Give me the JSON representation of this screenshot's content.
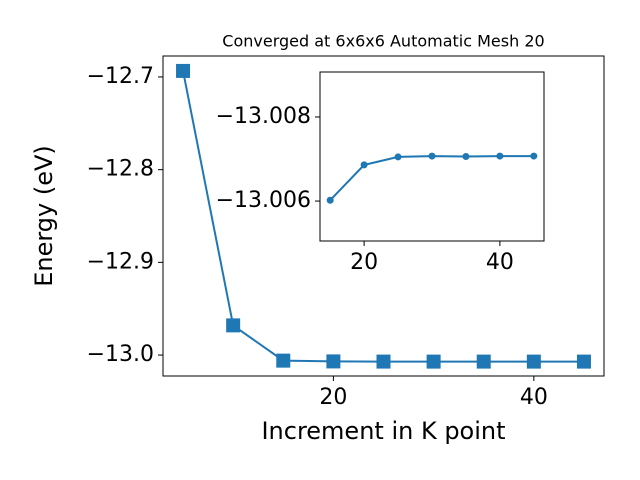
{
  "chart_data": [
    {
      "type": "line",
      "title": "Converged at 6x6x6 Automatic Mesh 20",
      "xlabel": "Increment in K point",
      "ylabel": "Energy (eV)",
      "x": [
        5,
        10,
        15,
        20,
        25,
        30,
        35,
        40,
        45
      ],
      "series": [
        {
          "color": "#1f77b4",
          "marker": "square",
          "values": [
            -12.6935,
            -12.968,
            -13.00602,
            -13.00686,
            -13.00705,
            -13.00707,
            -13.00706,
            -13.00707,
            -13.00707
          ]
        }
      ],
      "xlim": [
        3,
        47
      ],
      "xticks": [
        20,
        40
      ],
      "ylim": [
        -13.0226,
        -12.6774
      ],
      "yticks": [
        {
          "value": -13.0,
          "label": "−13.0"
        },
        {
          "value": -12.9,
          "label": "−12.9"
        },
        {
          "value": -12.8,
          "label": "−12.8"
        },
        {
          "value": -12.7,
          "label": "−12.7"
        }
      ]
    },
    {
      "type": "line",
      "x": [
        15,
        20,
        25,
        30,
        35,
        40,
        45
      ],
      "series": [
        {
          "color": "#1f77b4",
          "marker": "circle",
          "values": [
            -13.00602,
            -13.00686,
            -13.00705,
            -13.00707,
            -13.00706,
            -13.00707,
            -13.00707
          ]
        }
      ],
      "xlim": [
        13.5,
        46.5
      ],
      "xticks": [
        20,
        40
      ],
      "ylim": [
        -13.00505,
        -13.00907
      ],
      "yticks": [
        {
          "value": -13.006,
          "label": "−13.006"
        },
        {
          "value": -13.008,
          "label": "−13.008"
        }
      ]
    }
  ]
}
